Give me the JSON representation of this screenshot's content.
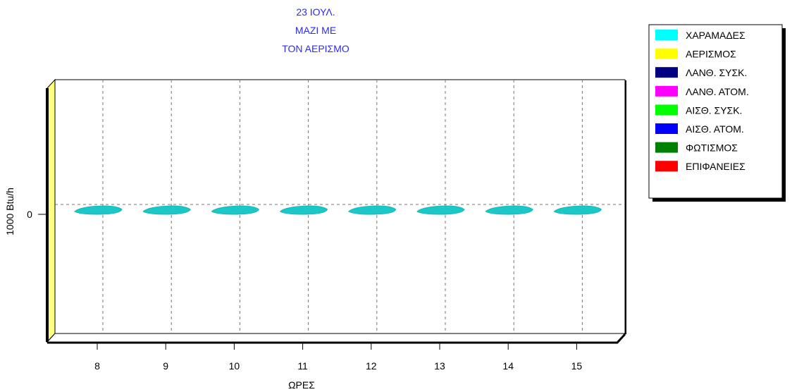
{
  "chart_data": {
    "type": "bar",
    "title_lines": [
      "23 ΙΟΥΛ.",
      "ΜΑΖΙ ΜΕ",
      "ΤΟΝ ΑΕΡΙΣΜΟ"
    ],
    "xlabel": "ΩΡΕΣ",
    "ylabel": "1000 Btu/h",
    "categories": [
      "8",
      "9",
      "10",
      "11",
      "12",
      "13",
      "14",
      "15"
    ],
    "y_ticks": [
      "0"
    ],
    "ylim": [
      -1,
      1
    ],
    "grid": true,
    "legend_position": "top-right",
    "series": [
      {
        "name": "ΧΑΡΑΜΑΔΕΣ",
        "color": "#00ffff",
        "values": [
          0,
          0,
          0,
          0,
          0,
          0,
          0,
          0
        ]
      },
      {
        "name": "ΑΕΡΙΣΜΟΣ",
        "color": "#ffff00",
        "values": [
          0,
          0,
          0,
          0,
          0,
          0,
          0,
          0
        ]
      },
      {
        "name": "ΛΑΝΘ. ΣΥΣΚ.",
        "color": "#000080",
        "values": [
          0,
          0,
          0,
          0,
          0,
          0,
          0,
          0
        ]
      },
      {
        "name": "ΛΑΝΘ. ΑΤΟΜ.",
        "color": "#ff00ff",
        "values": [
          0,
          0,
          0,
          0,
          0,
          0,
          0,
          0
        ]
      },
      {
        "name": "ΑΙΣΘ. ΣΥΣΚ.",
        "color": "#00ff00",
        "values": [
          0,
          0,
          0,
          0,
          0,
          0,
          0,
          0
        ]
      },
      {
        "name": "ΑΙΣΘ. ΑΤΟΜ.",
        "color": "#0000ff",
        "values": [
          0,
          0,
          0,
          0,
          0,
          0,
          0,
          0
        ]
      },
      {
        "name": "ΦΩΤΙΣΜΟΣ",
        "color": "#008000",
        "values": [
          0,
          0,
          0,
          0,
          0,
          0,
          0,
          0
        ]
      },
      {
        "name": "ΕΠΙΦΑΝΕΙΕΣ",
        "color": "#ff0000",
        "values": [
          0,
          0,
          0,
          0,
          0,
          0,
          0,
          0
        ]
      }
    ],
    "colors": {
      "title": "#2b2bf5",
      "left_wall": "#ffff80",
      "visible_bar": "#1cc7c7"
    }
  }
}
